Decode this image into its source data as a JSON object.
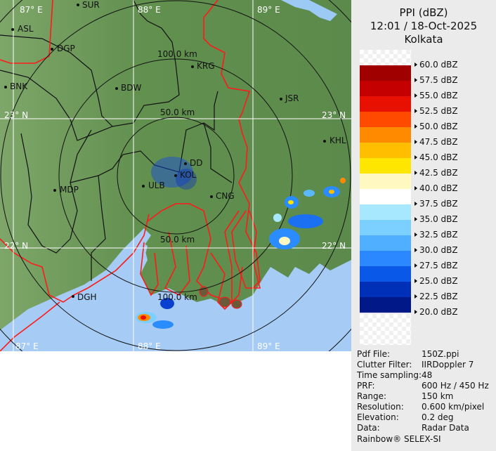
{
  "header": {
    "product": "PPI (dBZ)",
    "datetime": "12:01 / 18-Oct-2025",
    "site": "Kolkata"
  },
  "legend": [
    {
      "label": "60.0 dBZ",
      "color": "checker"
    },
    {
      "label": "57.5 dBZ",
      "color": "#a00000"
    },
    {
      "label": "55.0 dBZ",
      "color": "#c40000"
    },
    {
      "label": "52.5 dBZ",
      "color": "#e81000"
    },
    {
      "label": "50.0 dBZ",
      "color": "#ff4a00"
    },
    {
      "label": "47.5 dBZ",
      "color": "#ff8a00"
    },
    {
      "label": "45.0 dBZ",
      "color": "#ffbe00"
    },
    {
      "label": "42.5 dBZ",
      "color": "#ffe600"
    },
    {
      "label": "40.0 dBZ",
      "color": "#fff8c0"
    },
    {
      "label": "37.5 dBZ",
      "color": "#ffffff"
    },
    {
      "label": "35.0 dBZ",
      "color": "#a8e8ff"
    },
    {
      "label": "32.5 dBZ",
      "color": "#7cd0ff"
    },
    {
      "label": "30.0 dBZ",
      "color": "#50b0ff"
    },
    {
      "label": "27.5 dBZ",
      "color": "#2c88ff"
    },
    {
      "label": "25.0 dBZ",
      "color": "#0a58e8"
    },
    {
      "label": "22.5 dBZ",
      "color": "#0030b8"
    },
    {
      "label": "20.0 dBZ",
      "color": "#001888"
    }
  ],
  "info": [
    {
      "key": "Pdf File:",
      "value": "150Z.ppi"
    },
    {
      "key": "Clutter Filter:",
      "value": "IIRDoppler 7"
    },
    {
      "key": "Time sampling:",
      "value": "48"
    },
    {
      "key": "PRF:",
      "value": "600 Hz / 450 Hz"
    },
    {
      "key": "Range:",
      "value": "150 km"
    },
    {
      "key": "Resolution:",
      "value": "0.600 km/pixel"
    },
    {
      "key": "Elevation:",
      "value": "0.2 deg"
    },
    {
      "key": "Data:",
      "value": "Radar Data"
    }
  ],
  "footer": "Rainbow® SELEX-SI",
  "map": {
    "grid": {
      "lon": [
        "87° E",
        "88° E",
        "89° E"
      ],
      "lat": [
        "23° N",
        "22° N"
      ]
    },
    "rings": [
      "50.0 km",
      "100.0 km",
      "50.0 km",
      "100.0 km"
    ],
    "cities": [
      "SUR",
      "ASL",
      "DGP",
      "BNK",
      "BDW",
      "KRG",
      "JSR",
      "KHL",
      "MDP",
      "DD",
      "KOL",
      "ULB",
      "CNG",
      "DGH"
    ],
    "colors": {
      "land": "#5f8a4e",
      "sea": "#a6cbf4",
      "border": "#ff1a1a"
    }
  }
}
